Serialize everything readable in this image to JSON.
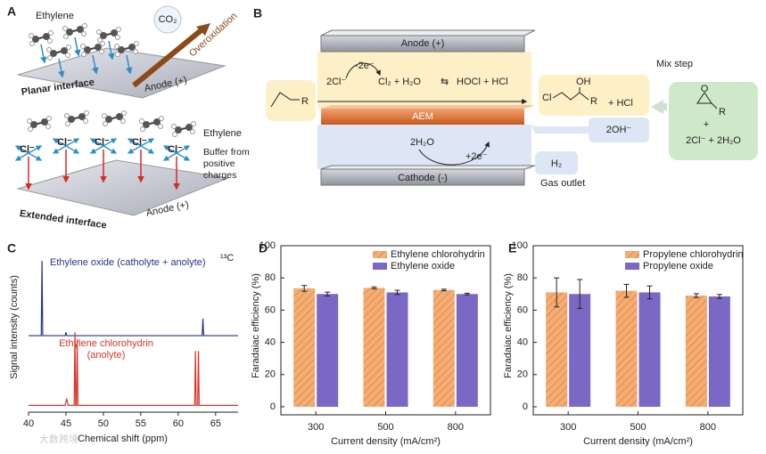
{
  "panel_a": {
    "label": "A",
    "ethylene_top": "Ethylene",
    "co2": "CO₂",
    "overoxidation": "Overoxidation",
    "planar": "Planar interface",
    "anode_top": "Anode (+)",
    "ethylene_bottom": "Ethylene",
    "chloride": [
      "Cl⁻",
      "Cl⁻",
      "Cl⁻",
      "Cl⁻",
      "Cl⁻"
    ],
    "buffer": "Buffer from positive charges",
    "extended": "Extended interface",
    "anode_bottom": "Anode (+)"
  },
  "panel_b": {
    "label": "B",
    "anode": "Anode (+)",
    "chloride": "2Cl⁻",
    "oxidation": "-2e⁻",
    "chlorine": "Cl₂ + H₂O",
    "equilibrium": "⇆",
    "hypochlorous": "HOCl + HCl",
    "membrane": "AEM",
    "water": "2H₂O",
    "reduction": "+2e⁻",
    "cathode": "Cathode (-)",
    "r_in": "R",
    "cl": "Cl",
    "oh": "OH",
    "r_mid": "R",
    "hcl": "+ HCl",
    "hydroxide": "2OH⁻",
    "hydrogen": "H₂",
    "gas": "Gas outlet",
    "mix": "Mix step",
    "o": "O",
    "r_out": "R",
    "plus": "+",
    "byproducts": "2Cl⁻ + 2H₂O"
  },
  "chart_data": [
    {
      "type": "line",
      "panel_label": "C",
      "xlabel": "Chemical shift (ppm)",
      "ylabel": "Signal intensity (counts)",
      "nucleus": "¹³C",
      "xlim": [
        40,
        68
      ],
      "xticks": [
        40,
        45,
        50,
        55,
        60,
        65
      ],
      "ylim": [
        0,
        100
      ],
      "series": [
        {
          "name": "Ethylene oxide (catholyte + anolyte)",
          "color": "#27348b",
          "x": [
            40,
            41.7,
            41.8,
            41.9,
            44.9,
            45.0,
            45.1,
            63.2,
            63.3,
            63.4,
            68
          ],
          "values": [
            45,
            45,
            89,
            45,
            45,
            47,
            45,
            45,
            55,
            45,
            45
          ]
        },
        {
          "name": "Ethylene chlorohydrin (anolyte)",
          "color": "#d9352a",
          "x": [
            40,
            44.9,
            45.1,
            45.3,
            46.1,
            46.2,
            46.3,
            46.4,
            46.5,
            46.6,
            62.2,
            62.3,
            62.4,
            62.6,
            62.7,
            62.8,
            68
          ],
          "values": [
            4,
            4,
            8,
            4,
            4,
            47,
            4,
            4,
            43,
            4,
            4,
            36,
            4,
            4,
            36,
            4,
            4
          ]
        }
      ]
    },
    {
      "type": "bar",
      "panel_label": "D",
      "xlabel": "Current density (mA/cm²)",
      "ylabel": "Faradaiac efficiency (%)",
      "categories": [
        "300",
        "500",
        "800"
      ],
      "ylim": [
        -5,
        100
      ],
      "yticks": [
        0,
        20,
        40,
        60,
        80,
        100
      ],
      "legend": "top-right",
      "series": [
        {
          "name": "Ethylene chlorohydrin",
          "color": "#f5ad72",
          "hatch": true,
          "values": [
            73.5,
            73.8,
            72.5
          ],
          "errors": [
            1.8,
            0.6,
            0.5
          ]
        },
        {
          "name": "Ethylene oxide",
          "color": "#7b68c4",
          "hatch": false,
          "values": [
            70,
            71,
            70
          ],
          "errors": [
            1.2,
            1.3,
            0.5
          ]
        }
      ]
    },
    {
      "type": "bar",
      "panel_label": "E",
      "xlabel": "Current density (mA/cm²)",
      "ylabel": "Faradaiac efficiency (%)",
      "categories": [
        "300",
        "500",
        "800"
      ],
      "ylim": [
        -5,
        100
      ],
      "yticks": [
        0,
        20,
        40,
        60,
        80,
        100
      ],
      "legend": "top-right",
      "series": [
        {
          "name": "Propylene chlorohydrin",
          "color": "#f5ad72",
          "hatch": true,
          "values": [
            71,
            72,
            69
          ],
          "errors": [
            9,
            4,
            1.2
          ]
        },
        {
          "name": "Propylene oxide",
          "color": "#7b68c4",
          "hatch": false,
          "values": [
            70,
            71,
            68.5
          ],
          "errors": [
            9,
            4,
            1.2
          ]
        }
      ]
    }
  ],
  "watermark": "大数跨境"
}
